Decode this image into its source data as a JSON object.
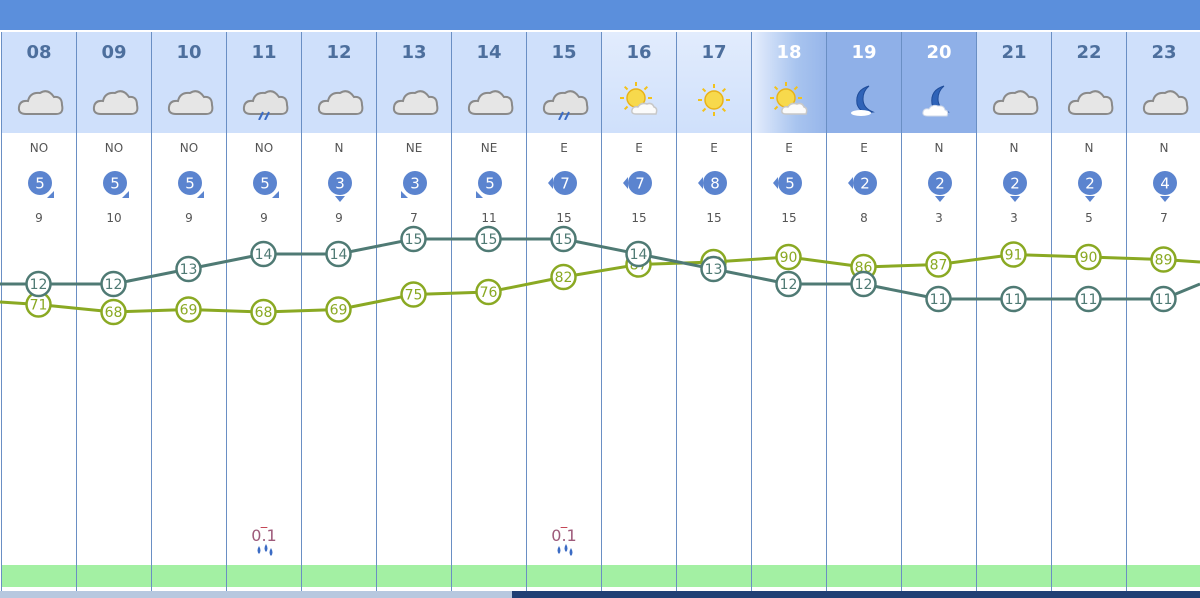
{
  "columns": [
    {
      "hour": "08",
      "icon": "cloud-icon",
      "wind_dir": "NO",
      "wind_speed": "5",
      "wind_arrow": "se",
      "gust": "9",
      "precip": ""
    },
    {
      "hour": "09",
      "icon": "cloud-icon",
      "wind_dir": "NO",
      "wind_speed": "5",
      "wind_arrow": "se",
      "gust": "10",
      "precip": ""
    },
    {
      "hour": "10",
      "icon": "cloud-icon",
      "wind_dir": "NO",
      "wind_speed": "5",
      "wind_arrow": "se",
      "gust": "9",
      "precip": ""
    },
    {
      "hour": "11",
      "icon": "rain-cloud-icon",
      "wind_dir": "NO",
      "wind_speed": "5",
      "wind_arrow": "se",
      "gust": "9",
      "precip": "0.1"
    },
    {
      "hour": "12",
      "icon": "cloud-icon",
      "wind_dir": "N",
      "wind_speed": "3",
      "wind_arrow": "s",
      "gust": "9",
      "precip": ""
    },
    {
      "hour": "13",
      "icon": "cloud-icon",
      "wind_dir": "NE",
      "wind_speed": "3",
      "wind_arrow": "sw",
      "gust": "7",
      "precip": ""
    },
    {
      "hour": "14",
      "icon": "cloud-icon",
      "wind_dir": "NE",
      "wind_speed": "5",
      "wind_arrow": "sw",
      "gust": "11",
      "precip": ""
    },
    {
      "hour": "15",
      "icon": "rain-cloud-icon",
      "wind_dir": "E",
      "wind_speed": "7",
      "wind_arrow": "w",
      "gust": "15",
      "precip": "0.1"
    },
    {
      "hour": "16",
      "icon": "sun-cloud-icon",
      "wind_dir": "E",
      "wind_speed": "7",
      "wind_arrow": "w",
      "gust": "15",
      "precip": ""
    },
    {
      "hour": "17",
      "icon": "sun-icon",
      "wind_dir": "E",
      "wind_speed": "8",
      "wind_arrow": "w",
      "gust": "15",
      "precip": ""
    },
    {
      "hour": "18",
      "icon": "sun-cloud-icon",
      "wind_dir": "E",
      "wind_speed": "5",
      "wind_arrow": "w",
      "gust": "15",
      "precip": ""
    },
    {
      "hour": "19",
      "icon": "moon-icon",
      "wind_dir": "E",
      "wind_speed": "2",
      "wind_arrow": "w",
      "gust": "8",
      "precip": ""
    },
    {
      "hour": "20",
      "icon": "moon-cloud-icon",
      "wind_dir": "N",
      "wind_speed": "2",
      "wind_arrow": "s",
      "gust": "3",
      "precip": ""
    },
    {
      "hour": "21",
      "icon": "cloud-icon",
      "wind_dir": "N",
      "wind_speed": "2",
      "wind_arrow": "s",
      "gust": "3",
      "precip": ""
    },
    {
      "hour": "22",
      "icon": "cloud-icon",
      "wind_dir": "N",
      "wind_speed": "2",
      "wind_arrow": "s",
      "gust": "5",
      "precip": ""
    },
    {
      "hour": "23",
      "icon": "cloud-icon",
      "wind_dir": "N",
      "wind_speed": "4",
      "wind_arrow": "s",
      "gust": "7",
      "precip": ""
    }
  ],
  "colors": {
    "temperature": "#4f7a74",
    "humidity": "#8aa923",
    "header": "#cfe0fb",
    "wind_badge": "#5b84cf",
    "precip_band": "#a3f0a3"
  },
  "chart_data": {
    "type": "line",
    "categories": [
      "08",
      "09",
      "10",
      "11",
      "12",
      "13",
      "14",
      "15",
      "16",
      "17",
      "18",
      "19",
      "20",
      "21",
      "22",
      "23"
    ],
    "series": [
      {
        "values": [
          12,
          12,
          13,
          14,
          14,
          15,
          15,
          15,
          14,
          13,
          12,
          12,
          11,
          11,
          11,
          11
        ],
        "edge_before": 12,
        "edge_after": 12
      },
      {
        "values": [
          71,
          68,
          69,
          68,
          69,
          75,
          76,
          82,
          87,
          88,
          90,
          86,
          87,
          91,
          90,
          89
        ],
        "edge_before": 72,
        "edge_after": 88
      }
    ]
  }
}
